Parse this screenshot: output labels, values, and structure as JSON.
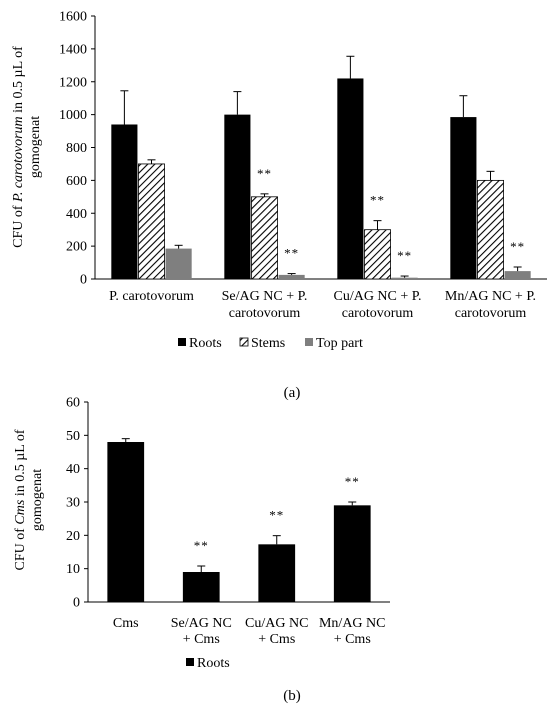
{
  "chart_data": [
    {
      "panel_label": "(a)",
      "type": "bar",
      "categories": [
        [
          "P. carotovorum"
        ],
        [
          "Se/AG NC + P.",
          "carotovorum"
        ],
        [
          "Cu/AG NC + P.",
          "carotovorum"
        ],
        [
          "Mn/AG NC + P.",
          "carotovorum"
        ]
      ],
      "ylabel_lines": [
        [
          {
            "text": "CFU of ",
            "italic": false
          },
          {
            "text": "P. carotovorum",
            "italic": true
          },
          {
            "text": " in 0.5 µL of",
            "italic": false
          }
        ],
        [
          {
            "text": "gomogenat",
            "italic": false
          }
        ]
      ],
      "ylim": [
        0,
        1600
      ],
      "yticks": [
        0,
        200,
        400,
        600,
        800,
        1000,
        1200,
        1400,
        1600
      ],
      "legend_position": "bottom",
      "grid": false,
      "series": [
        {
          "name": "Roots",
          "color": "#000000",
          "pattern": "solid",
          "values": [
            940,
            1000,
            1220,
            985
          ],
          "errors": [
            205,
            140,
            135,
            130
          ],
          "marks": [
            "",
            "",
            "",
            ""
          ]
        },
        {
          "name": "Stems",
          "color": "#000000",
          "pattern": "hatch",
          "values": [
            700,
            500,
            300,
            600
          ],
          "errors": [
            25,
            18,
            55,
            55
          ],
          "marks": [
            "",
            "**",
            "**",
            ""
          ]
        },
        {
          "name": "Top part",
          "color": "#7f7f7f",
          "pattern": "solid",
          "values": [
            185,
            25,
            8,
            48
          ],
          "errors": [
            20,
            8,
            10,
            25
          ],
          "marks": [
            "",
            "**",
            "**",
            "**"
          ]
        }
      ]
    },
    {
      "panel_label": "(b)",
      "type": "bar",
      "categories": [
        [
          "Cms"
        ],
        [
          "Se/AG NC",
          "+ Cms"
        ],
        [
          "Cu/AG NC",
          "+ Cms"
        ],
        [
          "Mn/AG NC",
          "+ Cms"
        ]
      ],
      "ylabel_lines": [
        [
          {
            "text": "CFU of ",
            "italic": false
          },
          {
            "text": "Cms",
            "italic": true
          },
          {
            "text": " in 0.5 µL of",
            "italic": false
          }
        ],
        [
          {
            "text": "gomogenat",
            "italic": false
          }
        ]
      ],
      "ylim": [
        0,
        60
      ],
      "yticks": [
        0,
        10,
        20,
        30,
        40,
        50,
        60
      ],
      "legend_position": "bottom",
      "grid": false,
      "series": [
        {
          "name": "Roots",
          "color": "#000000",
          "pattern": "solid",
          "values": [
            48,
            9,
            17.3,
            29
          ],
          "errors": [
            1,
            1.8,
            2.6,
            1
          ],
          "marks": [
            "",
            "**",
            "**",
            "**"
          ]
        }
      ]
    }
  ]
}
